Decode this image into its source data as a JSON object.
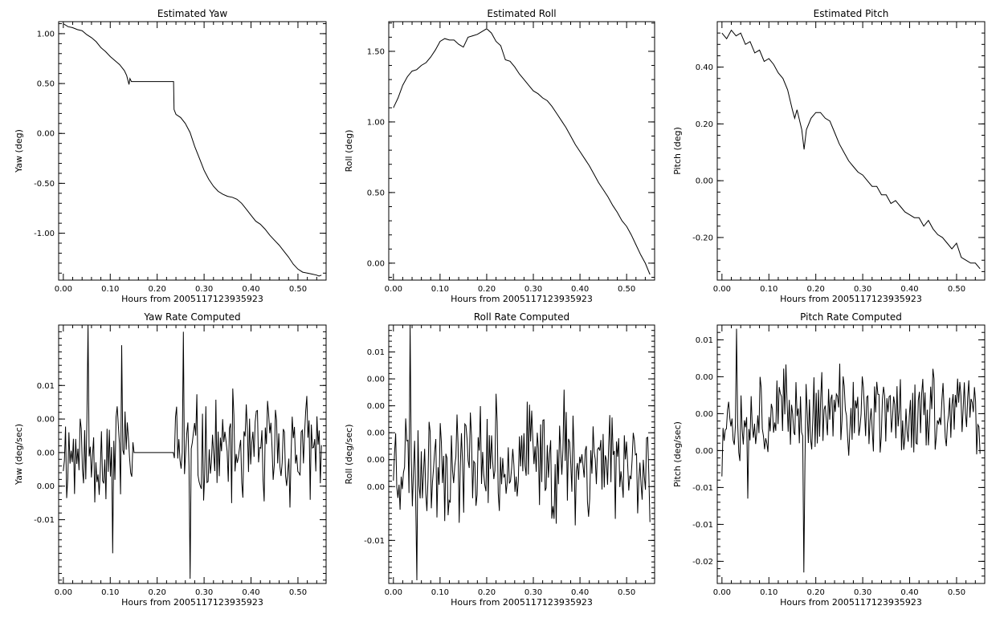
{
  "chart_data": [
    {
      "type": "line",
      "title": "Estimated Yaw",
      "xlabel": "Hours from 2005117123935923",
      "ylabel": "Yaw (deg)",
      "xlim": [
        -0.01,
        0.56
      ],
      "ylim": [
        -1.47,
        1.12
      ],
      "xticks": [
        "0.00",
        "0.10",
        "0.20",
        "0.30",
        "0.40",
        "0.50"
      ],
      "yticks": [
        "1.00",
        "0.50",
        "0.00",
        "-0.50",
        "-1.00"
      ],
      "yticks_values": [
        1.0,
        0.5,
        0.0,
        -0.5,
        -1.0
      ],
      "series": [
        {
          "x": [
            0,
            0.01,
            0.02,
            0.03,
            0.04,
            0.05,
            0.06,
            0.07,
            0.08,
            0.09,
            0.1,
            0.11,
            0.12,
            0.13,
            0.135,
            0.14,
            0.142,
            0.145,
            0.15,
            0.2,
            0.235,
            0.236,
            0.24,
            0.25,
            0.26,
            0.27,
            0.28,
            0.29,
            0.3,
            0.31,
            0.32,
            0.33,
            0.34,
            0.35,
            0.36,
            0.37,
            0.38,
            0.39,
            0.4,
            0.41,
            0.42,
            0.43,
            0.44,
            0.45,
            0.46,
            0.47,
            0.48,
            0.49,
            0.5,
            0.51,
            0.52,
            0.53,
            0.54,
            0.545,
            0.55
          ],
          "values": [
            1.1,
            1.07,
            1.06,
            1.04,
            1.03,
            0.99,
            0.96,
            0.92,
            0.86,
            0.82,
            0.77,
            0.73,
            0.69,
            0.63,
            0.58,
            0.49,
            0.55,
            0.52,
            0.52,
            0.52,
            0.52,
            0.24,
            0.19,
            0.16,
            0.1,
            0.01,
            -0.13,
            -0.25,
            -0.37,
            -0.46,
            -0.53,
            -0.58,
            -0.61,
            -0.63,
            -0.64,
            -0.66,
            -0.7,
            -0.76,
            -0.82,
            -0.88,
            -0.91,
            -0.96,
            -1.02,
            -1.07,
            -1.12,
            -1.18,
            -1.24,
            -1.31,
            -1.36,
            -1.39,
            -1.4,
            -1.41,
            -1.42,
            -1.43,
            -1.42
          ]
        }
      ]
    },
    {
      "type": "line",
      "title": "Estimated Roll",
      "xlabel": "Hours from 2005117123935923",
      "ylabel": "Roll (deg)",
      "xlim": [
        -0.01,
        0.56
      ],
      "ylim": [
        -0.12,
        1.71
      ],
      "xticks": [
        "0.00",
        "0.10",
        "0.20",
        "0.30",
        "0.40",
        "0.50"
      ],
      "yticks": [
        "1.50",
        "1.00",
        "0.50",
        "0.00"
      ],
      "yticks_values": [
        1.5,
        1.0,
        0.5,
        0.0
      ],
      "series": [
        {
          "x": [
            0,
            0.01,
            0.02,
            0.03,
            0.04,
            0.05,
            0.06,
            0.07,
            0.08,
            0.09,
            0.1,
            0.11,
            0.12,
            0.13,
            0.14,
            0.15,
            0.16,
            0.17,
            0.18,
            0.19,
            0.2,
            0.21,
            0.22,
            0.23,
            0.24,
            0.25,
            0.26,
            0.27,
            0.28,
            0.29,
            0.3,
            0.31,
            0.32,
            0.33,
            0.34,
            0.35,
            0.36,
            0.37,
            0.38,
            0.39,
            0.4,
            0.41,
            0.42,
            0.43,
            0.44,
            0.45,
            0.46,
            0.47,
            0.48,
            0.49,
            0.5,
            0.51,
            0.52,
            0.53,
            0.54,
            0.55
          ],
          "values": [
            1.1,
            1.17,
            1.26,
            1.32,
            1.36,
            1.37,
            1.4,
            1.42,
            1.46,
            1.51,
            1.57,
            1.59,
            1.58,
            1.58,
            1.55,
            1.53,
            1.6,
            1.61,
            1.62,
            1.64,
            1.66,
            1.63,
            1.57,
            1.54,
            1.44,
            1.43,
            1.39,
            1.34,
            1.3,
            1.26,
            1.22,
            1.2,
            1.17,
            1.15,
            1.11,
            1.06,
            1.01,
            0.96,
            0.9,
            0.84,
            0.79,
            0.74,
            0.69,
            0.63,
            0.57,
            0.52,
            0.47,
            0.41,
            0.36,
            0.3,
            0.26,
            0.2,
            0.13,
            0.06,
            0.0,
            -0.08
          ]
        }
      ]
    },
    {
      "type": "line",
      "title": "Estimated Pitch",
      "xlabel": "Hours from 2005117123935923",
      "ylabel": "Pitch (deg)",
      "xlim": [
        -0.01,
        0.56
      ],
      "ylim": [
        -0.35,
        0.56
      ],
      "xticks": [
        "0.00",
        "0.10",
        "0.20",
        "0.30",
        "0.40",
        "0.50"
      ],
      "yticks": [
        "0.40",
        "0.20",
        "0.00",
        "-0.20"
      ],
      "yticks_values": [
        0.4,
        0.2,
        0.0,
        -0.2
      ],
      "series": [
        {
          "x": [
            0,
            0.01,
            0.02,
            0.03,
            0.04,
            0.05,
            0.06,
            0.07,
            0.08,
            0.09,
            0.1,
            0.11,
            0.12,
            0.13,
            0.14,
            0.15,
            0.155,
            0.16,
            0.17,
            0.175,
            0.18,
            0.19,
            0.2,
            0.21,
            0.22,
            0.23,
            0.24,
            0.25,
            0.26,
            0.27,
            0.28,
            0.29,
            0.3,
            0.31,
            0.32,
            0.33,
            0.34,
            0.35,
            0.36,
            0.37,
            0.38,
            0.39,
            0.4,
            0.41,
            0.42,
            0.43,
            0.44,
            0.45,
            0.46,
            0.47,
            0.48,
            0.49,
            0.5,
            0.51,
            0.52,
            0.53,
            0.54,
            0.55
          ],
          "values": [
            0.52,
            0.5,
            0.53,
            0.51,
            0.52,
            0.48,
            0.49,
            0.45,
            0.46,
            0.42,
            0.43,
            0.41,
            0.38,
            0.36,
            0.32,
            0.25,
            0.22,
            0.25,
            0.18,
            0.11,
            0.18,
            0.22,
            0.24,
            0.24,
            0.22,
            0.21,
            0.17,
            0.13,
            0.1,
            0.07,
            0.05,
            0.03,
            0.02,
            0.0,
            -0.02,
            -0.02,
            -0.05,
            -0.05,
            -0.08,
            -0.07,
            -0.09,
            -0.11,
            -0.12,
            -0.13,
            -0.13,
            -0.16,
            -0.14,
            -0.17,
            -0.19,
            -0.2,
            -0.22,
            -0.24,
            -0.22,
            -0.27,
            -0.28,
            -0.29,
            -0.29,
            -0.31
          ]
        }
      ]
    },
    {
      "type": "line",
      "title": "Yaw Rate Computed",
      "xlabel": "Hours from 2005117123935923",
      "ylabel": "Yaw (deg/sec)",
      "xlim": [
        -0.01,
        0.56
      ],
      "ylim": [
        -0.0195,
        0.019
      ],
      "xticks": [
        "0.00",
        "0.10",
        "0.20",
        "0.30",
        "0.40",
        "0.50"
      ],
      "yticks": [
        "0.01",
        "0.00",
        "0.00",
        "0.00",
        "-0.01"
      ],
      "yticks_values": [
        0.01,
        0.005,
        0.0,
        -0.005,
        -0.01
      ],
      "flat_segment": [
        0.15,
        0.235
      ],
      "peaks": [
        [
          0.052,
          0.019
        ],
        [
          0.255,
          0.018
        ],
        [
          0.27,
          -0.0188
        ],
        [
          0.125,
          0.016
        ],
        [
          0.105,
          -0.015
        ]
      ]
    },
    {
      "type": "line",
      "title": "Roll Rate Computed",
      "xlabel": "Hours from 2005117123935923",
      "ylabel": "Roll (deg/sec)",
      "xlim": [
        -0.01,
        0.56
      ],
      "ylim": [
        -0.0115,
        0.0125
      ],
      "xticks": [
        "0.00",
        "0.10",
        "0.20",
        "0.30",
        "0.40",
        "0.50"
      ],
      "yticks": [
        "0.01",
        "0.00",
        "0.00",
        "0.00",
        "0.00",
        "0.00",
        "-0.01"
      ],
      "yticks_values": [
        0.01,
        0.0075,
        0.005,
        0.0025,
        0.0,
        -0.0025,
        -0.0075
      ],
      "peaks": [
        [
          0.035,
          0.0125
        ],
        [
          0.05,
          -0.0112
        ],
        [
          0.365,
          0.0065
        ],
        [
          0.345,
          -0.0055
        ],
        [
          0.475,
          -0.0055
        ]
      ]
    },
    {
      "type": "line",
      "title": "Pitch Rate Computed",
      "xlabel": "Hours from 2005117123935923",
      "ylabel": "Pitch (deg/sec)",
      "xlim": [
        -0.01,
        0.56
      ],
      "ylim": [
        -0.023,
        0.012
      ],
      "xticks": [
        "0.00",
        "0.10",
        "0.20",
        "0.30",
        "0.40",
        "0.50"
      ],
      "yticks": [
        "0.01",
        "0.00",
        "0.00",
        "0.00",
        "-0.01",
        "-0.01",
        "-0.02"
      ],
      "yticks_values": [
        0.01,
        0.005,
        0.0,
        -0.005,
        -0.01,
        -0.015,
        -0.02
      ],
      "peaks": [
        [
          0.03,
          0.0115
        ],
        [
          0.175,
          -0.0215
        ],
        [
          0.055,
          -0.0115
        ],
        [
          0.0,
          -0.0085
        ]
      ]
    }
  ]
}
